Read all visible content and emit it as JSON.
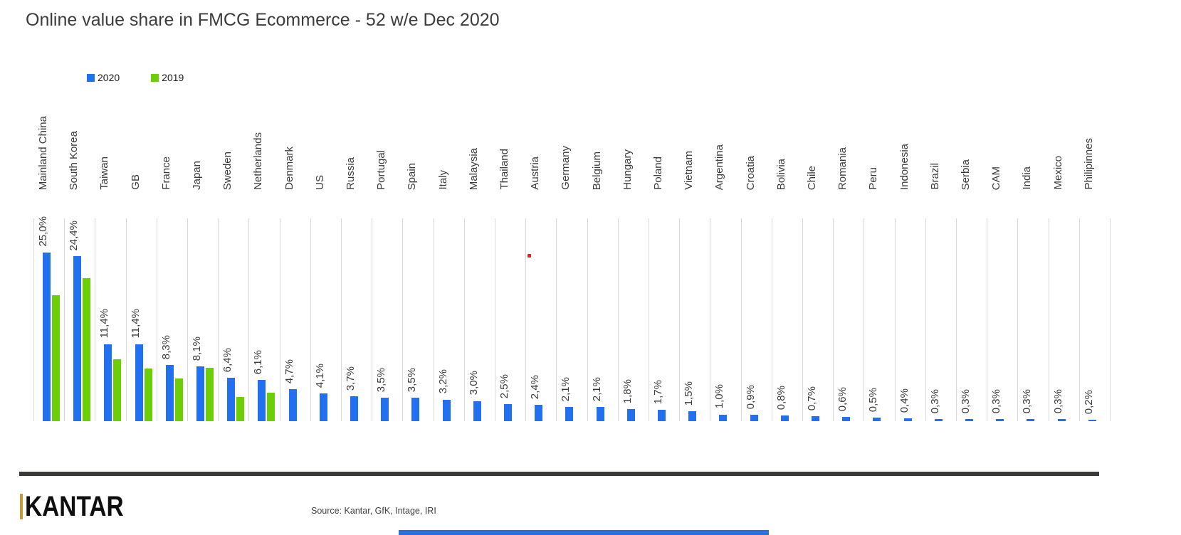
{
  "title": "Online value share in FMCG Ecommerce - 52 w/e Dec 2020",
  "legend": {
    "items": [
      {
        "label": "2020",
        "color": "#2070f0"
      },
      {
        "label": "2019",
        "color": "#6cce04"
      }
    ]
  },
  "chart_data": {
    "type": "bar",
    "title": "Online value share in FMCG Ecommerce - 52 w/e Dec 2020",
    "categories": [
      "Mainland China",
      "South Korea",
      "Taiwan",
      "GB",
      "France",
      "Japan",
      "Sweden",
      "Netherlands",
      "Denmark",
      "US",
      "Russia",
      "Portugal",
      "Spain",
      "Italy",
      "Malaysia",
      "Thailand",
      "Austria",
      "Germany",
      "Belgium",
      "Hungary",
      "Poland",
      "Vietnam",
      "Argentina",
      "Croatia",
      "Bolivia",
      "Chile",
      "Romania",
      "Peru",
      "Indonesia",
      "Brazil",
      "Serbia",
      "CAM",
      "India",
      "Mexico",
      "Philipinnes"
    ],
    "series": [
      {
        "name": "2020",
        "color": "#2070f0",
        "values": [
          25.0,
          24.4,
          11.4,
          11.4,
          8.3,
          8.1,
          6.4,
          6.1,
          4.7,
          4.1,
          3.7,
          3.5,
          3.5,
          3.2,
          3.0,
          2.5,
          2.4,
          2.1,
          2.1,
          1.8,
          1.7,
          1.5,
          1.0,
          0.9,
          0.8,
          0.7,
          0.6,
          0.5,
          0.4,
          0.3,
          0.3,
          0.3,
          0.3,
          0.3,
          0.2
        ],
        "labels": [
          "25,0%",
          "24,4%",
          "11,4%",
          "11,4%",
          "8,3%",
          "8,1%",
          "6,4%",
          "6,1%",
          "4,7%",
          "4,1%",
          "3,7%",
          "3,5%",
          "3,5%",
          "3,2%",
          "3,0%",
          "2,5%",
          "2,4%",
          "2,1%",
          "2,1%",
          "1,8%",
          "1,7%",
          "1,5%",
          "1,0%",
          "0,9%",
          "0,8%",
          "0,7%",
          "0,6%",
          "0,5%",
          "0,4%",
          "0,3%",
          "0,3%",
          "0,3%",
          "0,3%",
          "0,3%",
          "0,2%"
        ]
      },
      {
        "name": "2019",
        "color": "#6cce04",
        "values": [
          18.6,
          21.2,
          9.2,
          7.8,
          6.3,
          7.9,
          3.6,
          4.2,
          null,
          null,
          null,
          null,
          null,
          null,
          null,
          null,
          null,
          null,
          null,
          null,
          null,
          null,
          null,
          null,
          null,
          null,
          null,
          null,
          null,
          null,
          null,
          null,
          null,
          null,
          null
        ]
      }
    ],
    "value_labels_shown_for": "2020",
    "ylim": [
      0,
      30
    ],
    "grid": "vertical category separators",
    "legend_position": "top-left",
    "annotations": [
      {
        "type": "dot",
        "color": "#ed1c24",
        "note": "small red mark near Thailand/Austria column tops"
      }
    ]
  },
  "footer": {
    "brand": "KANTAR",
    "brand_accent_color": "#c49a3f",
    "divider_color": "#3a3a38",
    "source": "Source: Kantar, GfK, Intage, IRI"
  },
  "artifacts": {
    "bottom_strip_color": "#2e6fd6"
  }
}
